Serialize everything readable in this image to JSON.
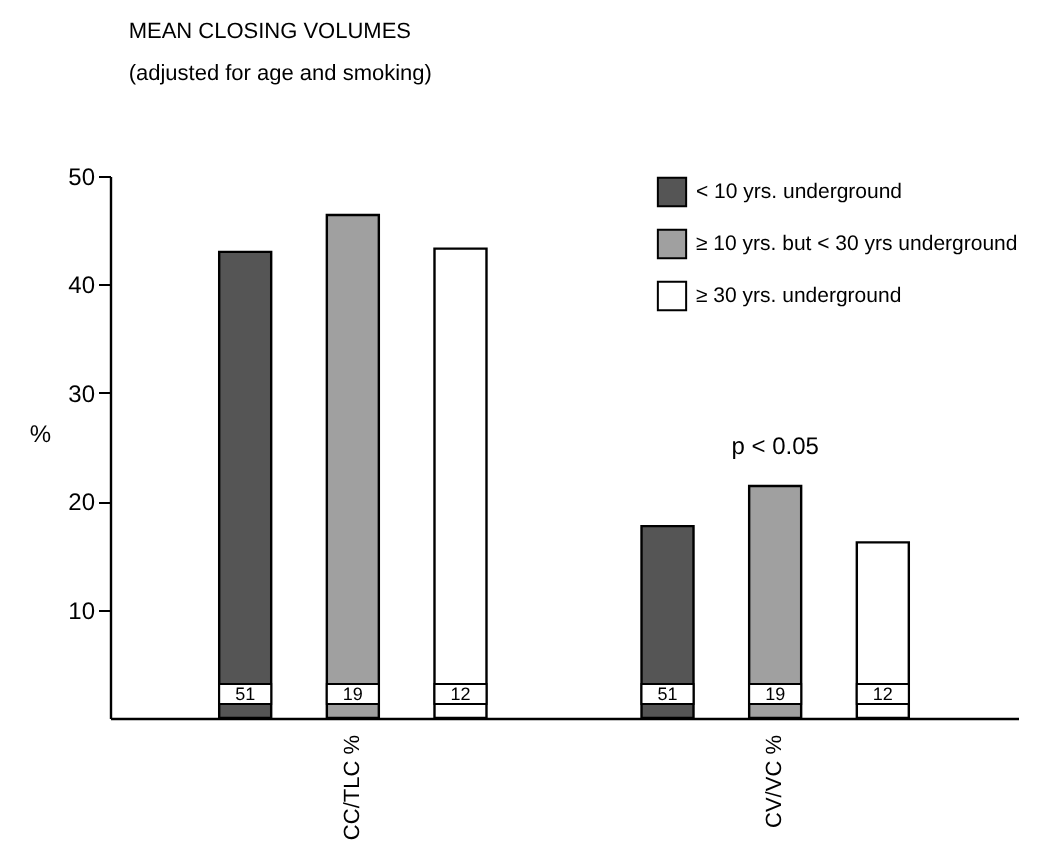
{
  "chart_data": {
    "type": "bar",
    "title": "MEAN  CLOSING  VOLUMES",
    "subtitle": "(adjusted  for  age  and  smoking)",
    "ylabel": "%",
    "categories": [
      "CC/TLC %",
      "CV/VC %"
    ],
    "series": [
      {
        "name": "< 10 yrs. underground",
        "color": "#555555",
        "values": [
          43,
          17.7
        ]
      },
      {
        "name": "≥ 10 yrs. but < 30 yrs underground",
        "color": "#a0a0a0",
        "values": [
          46.4,
          21.4
        ]
      },
      {
        "name": "≥ 30 yrs. underground",
        "color": "#ffffff",
        "values": [
          43.3,
          16.2
        ]
      }
    ],
    "ylim": [
      0,
      50
    ],
    "yticks": [
      10,
      20,
      30,
      40,
      50
    ],
    "grid": false,
    "legend": "top right",
    "annotations": [
      "51",
      "19",
      "12",
      "51",
      "19",
      "12",
      "p < 0.05"
    ]
  }
}
